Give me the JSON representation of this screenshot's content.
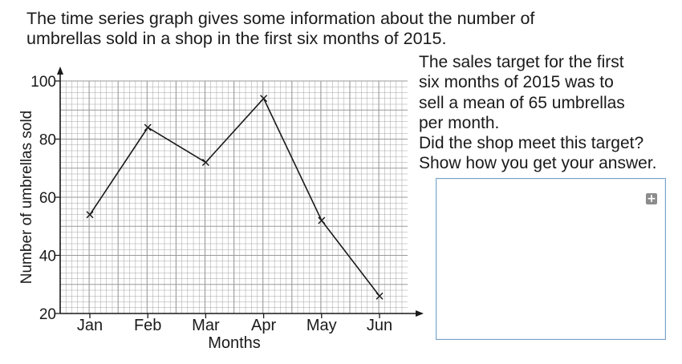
{
  "intro": {
    "line1": "The time series graph gives some information about the number of",
    "line2": "umbrellas sold in a shop in the first six months of 2015."
  },
  "question": {
    "lines": [
      "The sales target for the first",
      "six months of 2015 was to",
      "sell a mean of 65 umbrellas",
      "per month.",
      "Did the shop meet this target?",
      "Show how you get your answer."
    ]
  },
  "answer_box": {
    "expand_icon": "plus-icon",
    "expand_symbol": "+"
  },
  "chart_data": {
    "type": "line",
    "title": "",
    "xlabel": "Months",
    "ylabel": "Number of umbrellas sold",
    "categories": [
      "Jan",
      "Feb",
      "Mar",
      "Apr",
      "May",
      "Jun"
    ],
    "values": [
      54,
      84,
      72,
      94,
      52,
      26
    ],
    "ylim": [
      20,
      100
    ],
    "yticks": [
      20,
      40,
      60,
      80,
      100
    ],
    "marker": "x",
    "grid": true,
    "line_color": "#1a1a1a",
    "grid_color": "#9a9a9a"
  }
}
